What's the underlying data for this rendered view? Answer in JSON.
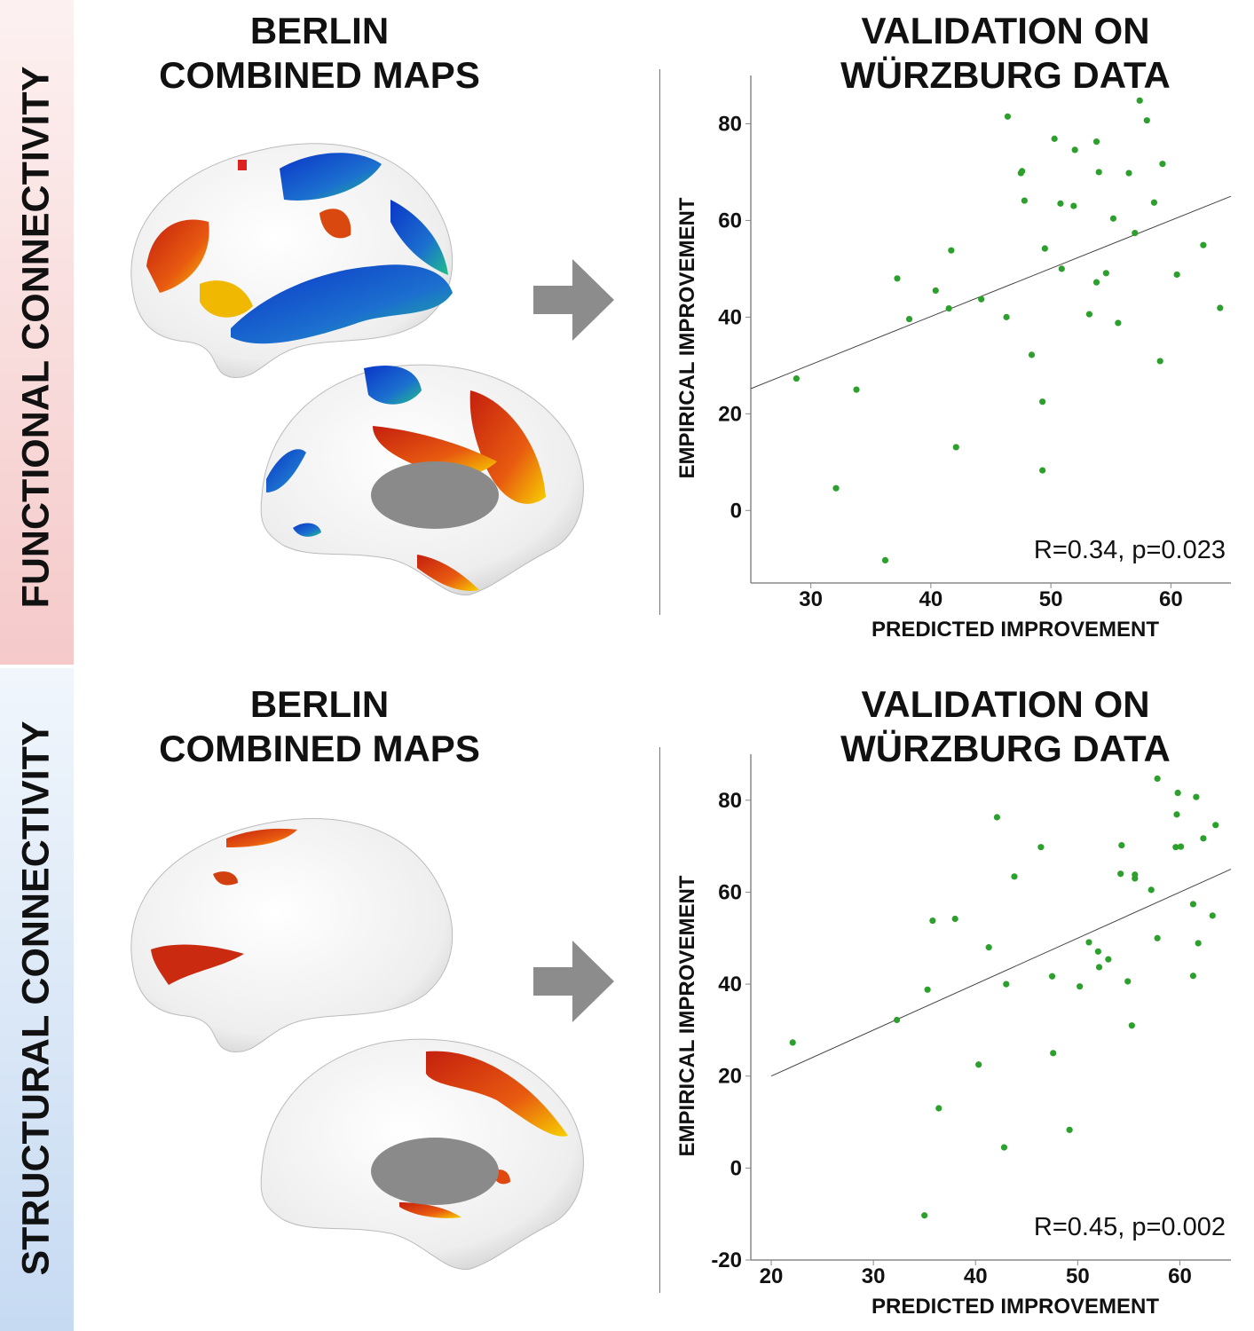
{
  "rows": [
    {
      "side_label": "FUNCTIONAL CONNECTIVITY",
      "left_title": [
        "BERLIN",
        "COMBINED MAPS"
      ],
      "right_title": [
        "VALIDATION ON",
        "WÜRZBURG DATA"
      ]
    },
    {
      "side_label": "STRUCTURAL CONNECTIVITY",
      "left_title": [
        "BERLIN",
        "COMBINED MAPS"
      ],
      "right_title": [
        "VALIDATION ON",
        "WÜRZBURG DATA"
      ]
    }
  ],
  "colors": {
    "points": "#2ca02c",
    "fit_line": "#444444",
    "arrow": "#8c8c8c",
    "functional_band": "#f5c9c9",
    "structural_band": "#c6daf2"
  },
  "chart_data": [
    {
      "type": "scatter",
      "title": "VALIDATION ON WÜRZBURG DATA",
      "xlabel": "PREDICTED IMPROVEMENT",
      "ylabel": "EMPIRICAL IMPROVEMENT",
      "xlim": [
        25,
        65
      ],
      "ylim": [
        -15,
        90
      ],
      "xticks": [
        30,
        40,
        50,
        60
      ],
      "yticks": [
        0,
        20,
        40,
        60,
        80
      ],
      "annotation": "R=0.34, p=0.023",
      "grid": false,
      "fit_line": [
        [
          25,
          25.2
        ],
        [
          65,
          65
        ]
      ],
      "points": [
        [
          28.8,
          27.3
        ],
        [
          32.1,
          4.6
        ],
        [
          33.8,
          25.0
        ],
        [
          36.2,
          -10.3
        ],
        [
          41.7,
          53.8
        ],
        [
          37.2,
          48.0
        ],
        [
          38.2,
          39.6
        ],
        [
          40.4,
          45.5
        ],
        [
          41.5,
          41.8
        ],
        [
          44.2,
          43.7
        ],
        [
          42.1,
          13.1
        ],
        [
          46.3,
          40.0
        ],
        [
          46.4,
          81.5
        ],
        [
          47.5,
          69.8
        ],
        [
          47.6,
          70.2
        ],
        [
          47.8,
          64.1
        ],
        [
          48.4,
          32.2
        ],
        [
          49.3,
          22.5
        ],
        [
          49.3,
          8.3
        ],
        [
          49.5,
          54.2
        ],
        [
          50.3,
          76.9
        ],
        [
          50.8,
          63.5
        ],
        [
          50.9,
          50.0
        ],
        [
          51.9,
          63.0
        ],
        [
          52.0,
          74.6
        ],
        [
          53.2,
          40.6
        ],
        [
          53.8,
          76.3
        ],
        [
          54.0,
          70.0
        ],
        [
          53.8,
          47.2
        ],
        [
          54.6,
          49.1
        ],
        [
          55.2,
          60.4
        ],
        [
          55.6,
          38.8
        ],
        [
          56.5,
          69.8
        ],
        [
          57.0,
          57.4
        ],
        [
          57.4,
          84.8
        ],
        [
          58.0,
          80.7
        ],
        [
          58.6,
          63.7
        ],
        [
          59.1,
          30.9
        ],
        [
          59.3,
          71.7
        ],
        [
          60.5,
          48.8
        ],
        [
          62.7,
          54.9
        ],
        [
          64.1,
          41.9
        ]
      ]
    },
    {
      "type": "scatter",
      "title": "VALIDATION ON WÜRZBURG DATA",
      "xlabel": "PREDICTED IMPROVEMENT",
      "ylabel": "EMPIRICAL IMPROVEMENT",
      "xlim": [
        18,
        65
      ],
      "ylim": [
        -20,
        90
      ],
      "xticks": [
        20,
        30,
        40,
        50,
        60
      ],
      "yticks": [
        -20,
        0,
        20,
        40,
        60,
        80
      ],
      "annotation": "R=0.45, p=0.002",
      "grid": false,
      "fit_line": [
        [
          20,
          20
        ],
        [
          65,
          65
        ]
      ],
      "points": [
        [
          22.1,
          27.3
        ],
        [
          32.3,
          32.2
        ],
        [
          35.3,
          38.8
        ],
        [
          35.0,
          -10.3
        ],
        [
          35.8,
          53.8
        ],
        [
          36.4,
          13.0
        ],
        [
          38.0,
          54.2
        ],
        [
          41.3,
          48.0
        ],
        [
          40.3,
          22.5
        ],
        [
          42.1,
          76.3
        ],
        [
          42.8,
          4.5
        ],
        [
          43.0,
          40.0
        ],
        [
          43.8,
          63.4
        ],
        [
          46.4,
          69.8
        ],
        [
          47.5,
          41.7
        ],
        [
          47.6,
          25.0
        ],
        [
          49.2,
          8.3
        ],
        [
          50.2,
          39.5
        ],
        [
          51.1,
          49.1
        ],
        [
          52.0,
          47.1
        ],
        [
          52.1,
          43.7
        ],
        [
          53.0,
          45.4
        ],
        [
          54.3,
          70.2
        ],
        [
          54.2,
          64.0
        ],
        [
          55.6,
          63.8
        ],
        [
          55.6,
          63.0
        ],
        [
          54.9,
          40.6
        ],
        [
          55.3,
          31.0
        ],
        [
          57.2,
          60.5
        ],
        [
          57.8,
          84.7
        ],
        [
          57.8,
          50.0
        ],
        [
          59.8,
          81.6
        ],
        [
          59.7,
          76.9
        ],
        [
          59.6,
          69.8
        ],
        [
          60.1,
          69.9
        ],
        [
          61.3,
          57.4
        ],
        [
          61.6,
          80.7
        ],
        [
          61.8,
          48.9
        ],
        [
          61.3,
          41.8
        ],
        [
          62.3,
          71.7
        ],
        [
          63.2,
          54.9
        ],
        [
          63.5,
          74.6
        ]
      ]
    }
  ]
}
